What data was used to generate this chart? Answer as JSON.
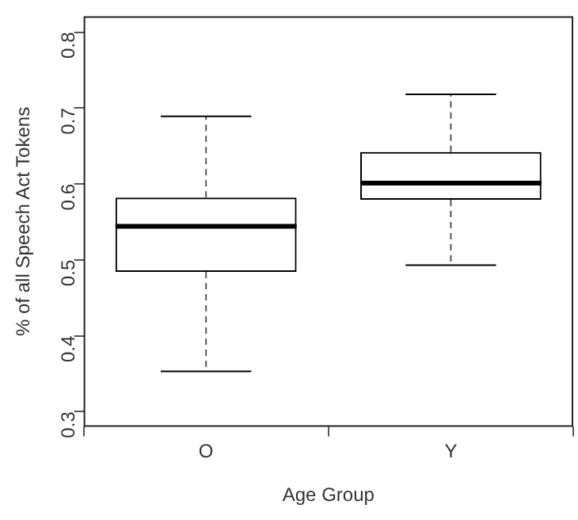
{
  "chart_data": {
    "type": "box",
    "xlabel": "Age Group",
    "ylabel": "% of all Speech Act Tokens",
    "categories": [
      "O",
      "Y"
    ],
    "boxes": [
      {
        "low": 0.353,
        "q1": 0.484,
        "median": 0.544,
        "q3": 0.582,
        "high": 0.689
      },
      {
        "low": 0.493,
        "q1": 0.579,
        "median": 0.601,
        "q3": 0.642,
        "high": 0.718
      }
    ],
    "color": "#000000",
    "ylim": [
      0.28,
      0.821
    ],
    "yticks": [
      0.3,
      0.4,
      0.5,
      0.6,
      0.7,
      0.8
    ],
    "grid": false,
    "legend": false
  }
}
